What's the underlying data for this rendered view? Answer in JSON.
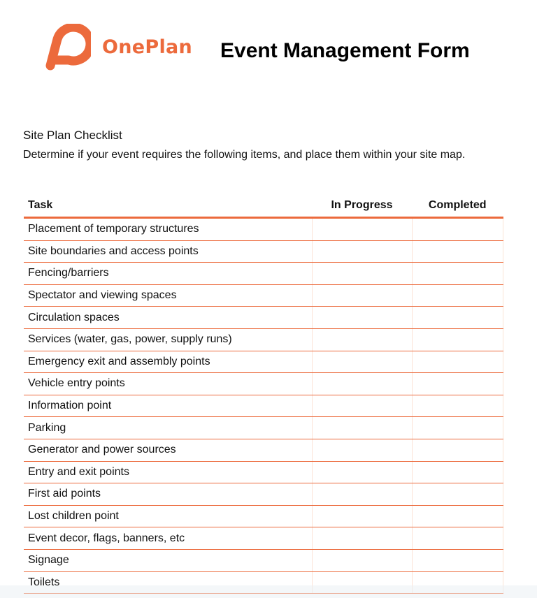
{
  "brand": {
    "name": "OnePlan",
    "color": "#ec6a3c"
  },
  "title": "Event Management Form",
  "section": {
    "title": "Site Plan Checklist",
    "description": "Determine if your event requires the following items, and place them within your site map."
  },
  "table": {
    "headers": [
      "Task",
      "In Progress",
      "Completed"
    ],
    "rows": [
      "Placement of temporary structures",
      "Site boundaries and access points",
      "Fencing/barriers",
      "Spectator and viewing spaces",
      "Circulation spaces",
      "Services (water, gas, power, supply runs)",
      "Emergency exit and assembly points",
      "Vehicle entry points",
      "Information point",
      "Parking",
      "Generator and power sources",
      "Entry and exit points",
      "First aid points",
      "Lost children point",
      "Event decor, flags, banners, etc",
      "Signage",
      "Toilets"
    ]
  }
}
